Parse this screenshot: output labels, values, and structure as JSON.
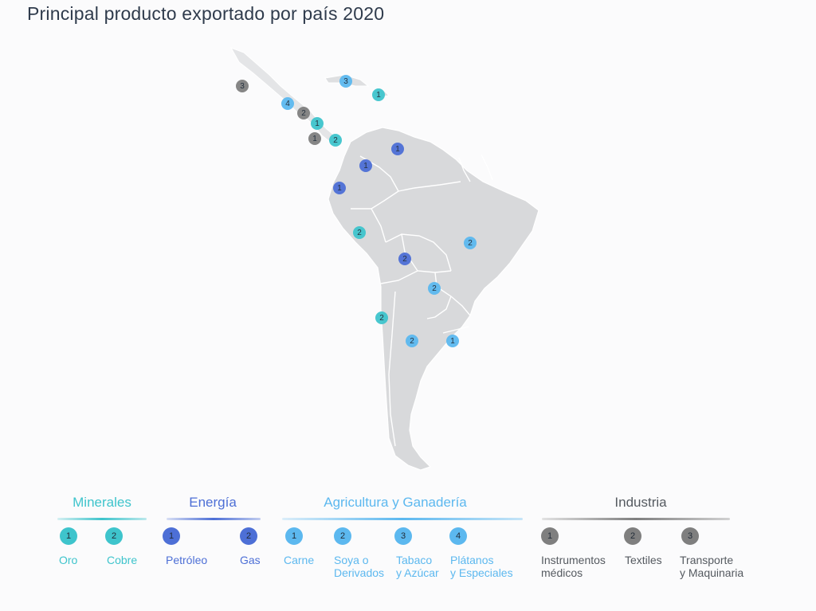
{
  "title": "Principal producto exportado por país 2020",
  "colors": {
    "minerales": "#3ec4cc",
    "energia": "#4d6fd6",
    "agricultura": "#5cb8ef",
    "industria": "#7f7f7f",
    "land": "#d9dadc",
    "border": "#ffffff"
  },
  "map_markers": [
    {
      "label": "3",
      "category": "industria"
    },
    {
      "label": "3",
      "category": "agricultura"
    },
    {
      "label": "1",
      "category": "minerales"
    },
    {
      "label": "4",
      "category": "agricultura"
    },
    {
      "label": "2",
      "category": "industria"
    },
    {
      "label": "1",
      "category": "minerales"
    },
    {
      "label": "1",
      "category": "industria"
    },
    {
      "label": "2",
      "category": "minerales"
    },
    {
      "label": "1",
      "category": "energia"
    },
    {
      "label": "1",
      "category": "energia"
    },
    {
      "label": "1",
      "category": "energia"
    },
    {
      "label": "2",
      "category": "minerales"
    },
    {
      "label": "2",
      "category": "energia"
    },
    {
      "label": "2",
      "category": "agricultura"
    },
    {
      "label": "2",
      "category": "agricultura"
    },
    {
      "label": "2",
      "category": "minerales"
    },
    {
      "label": "2",
      "category": "agricultura"
    },
    {
      "label": "1",
      "category": "agricultura"
    }
  ],
  "legend": {
    "minerales": {
      "title": "Minerales",
      "items": [
        {
          "num": "1",
          "label": "Oro"
        },
        {
          "num": "2",
          "label": "Cobre"
        }
      ]
    },
    "energia": {
      "title": "Energía",
      "items": [
        {
          "num": "1",
          "label": "Petróleo"
        },
        {
          "num": "2",
          "label": "Gas"
        }
      ]
    },
    "agricultura": {
      "title": "Agricultura y Ganadería",
      "items": [
        {
          "num": "1",
          "label": "Carne"
        },
        {
          "num": "2",
          "label": "Soya o\nDerivados"
        },
        {
          "num": "3",
          "label": "Tabaco\ny Azúcar"
        },
        {
          "num": "4",
          "label": "Plátanos\ny Especiales"
        }
      ]
    },
    "industria": {
      "title": "Industria",
      "items": [
        {
          "num": "1",
          "label": "Instrumentos\nmédicos"
        },
        {
          "num": "2",
          "label": "Textiles"
        },
        {
          "num": "3",
          "label": "Transporte\ny Maquinaria"
        }
      ]
    }
  }
}
